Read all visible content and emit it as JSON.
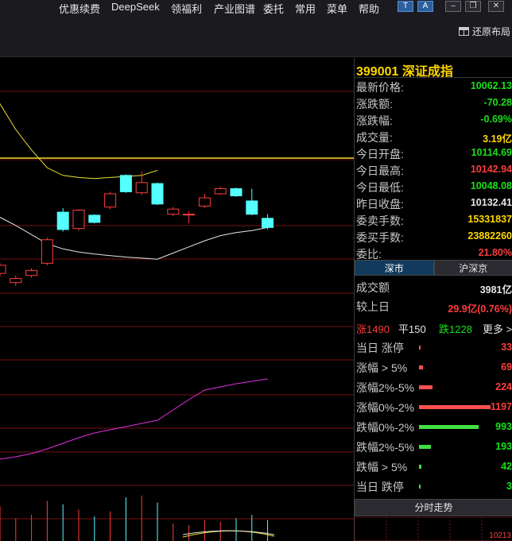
{
  "menu": {
    "items": [
      "优惠续费",
      "DeepSeek",
      "领福利",
      "产业图谱",
      "委托",
      "常用",
      "菜单",
      "帮助"
    ],
    "window_buttons": [
      "T",
      "A",
      "–",
      "❐",
      "✕"
    ]
  },
  "toolbar": {
    "restore_label": "还原布局"
  },
  "stock": {
    "code": "399001",
    "name": "深证成指"
  },
  "quote_rows": [
    {
      "label": "最新价格:",
      "value": "10062.13",
      "color": "green"
    },
    {
      "label": "涨跌额:",
      "value": "-70.28",
      "color": "green"
    },
    {
      "label": "涨跌幅:",
      "value": "-0.69%",
      "color": "green"
    },
    {
      "label": "成交量:",
      "value": "3.19亿",
      "color": "yellow"
    },
    {
      "label": "今日开盘:",
      "value": "10114.69",
      "color": "green"
    },
    {
      "label": "今日最高:",
      "value": "10142.94",
      "color": "red"
    },
    {
      "label": "今日最低:",
      "value": "10048.08",
      "color": "green"
    },
    {
      "label": "昨日收盘:",
      "value": "10132.41",
      "color": "white"
    },
    {
      "label": "委卖手数:",
      "value": "15331837",
      "color": "yellow"
    },
    {
      "label": "委买手数:",
      "value": "23882260",
      "color": "yellow"
    },
    {
      "label": "委比:",
      "value": "21.80%",
      "color": "red"
    }
  ],
  "market_tabs": [
    {
      "label": "深市",
      "active": true
    },
    {
      "label": "沪深京",
      "active": false
    }
  ],
  "turnover": {
    "label": "成交额",
    "value": "3981亿"
  },
  "vs_prev": {
    "label": "较上日",
    "value": "29.9亿(0.76%)"
  },
  "breadth": {
    "up": "涨1490",
    "flat": "平150",
    "down": "跌1228",
    "more": "更多 >"
  },
  "distribution": [
    {
      "label": "当日 涨停",
      "value": 33,
      "color": "red"
    },
    {
      "label": "涨幅 > 5%",
      "value": 69,
      "color": "red"
    },
    {
      "label": "涨幅2%-5%",
      "value": 224,
      "color": "red"
    },
    {
      "label": "涨幅0%-2%",
      "value": 1197,
      "color": "red"
    },
    {
      "label": "跌幅0%-2%",
      "value": 993,
      "color": "green"
    },
    {
      "label": "跌幅2%-5%",
      "value": 193,
      "color": "green"
    },
    {
      "label": "跌幅 > 5%",
      "value": 42,
      "color": "green"
    },
    {
      "label": "当日 跌停",
      "value": 3,
      "color": "green"
    }
  ],
  "intraday_button": "分时走势",
  "mini_price_label": "10213",
  "colors": {
    "up": "#ff3c3c",
    "down_candle": "#54ffff",
    "green": "#18e018",
    "yellow": "#ffd700",
    "ma_white": "#e6e6e6",
    "ma_yellow": "#e8e030",
    "ma_magenta": "#e030e0"
  },
  "chart_data": {
    "type": "candlestick",
    "candles": [
      {
        "open": 10008,
        "close": 10024,
        "high": 10028,
        "low": 10002
      },
      {
        "open": 9990,
        "close": 9998,
        "high": 10004,
        "low": 9984
      },
      {
        "open": 10004,
        "close": 10014,
        "high": 10018,
        "low": 10000
      },
      {
        "open": 10028,
        "close": 10074,
        "high": 10078,
        "low": 10024
      },
      {
        "open": 10128,
        "close": 10094,
        "high": 10136,
        "low": 10090
      },
      {
        "open": 10096,
        "close": 10132,
        "high": 10134,
        "low": 10092
      },
      {
        "open": 10122,
        "close": 10108,
        "high": 10124,
        "low": 10106
      },
      {
        "open": 10138,
        "close": 10164,
        "high": 10168,
        "low": 10134
      },
      {
        "open": 10200,
        "close": 10168,
        "high": 10202,
        "low": 10166
      },
      {
        "open": 10166,
        "close": 10186,
        "high": 10208,
        "low": 10162
      },
      {
        "open": 10184,
        "close": 10144,
        "high": 10186,
        "low": 10142
      },
      {
        "open": 10124,
        "close": 10134,
        "high": 10138,
        "low": 10120
      },
      {
        "open": 10124,
        "close": 10124,
        "high": 10130,
        "low": 10106
      },
      {
        "open": 10140,
        "close": 10156,
        "high": 10164,
        "low": 10136
      },
      {
        "open": 10164,
        "close": 10174,
        "high": 10178,
        "low": 10162
      },
      {
        "open": 10174,
        "close": 10160,
        "high": 10176,
        "low": 10158
      },
      {
        "open": 10150,
        "close": 10124,
        "high": 10174,
        "low": 10122
      },
      {
        "open": 10116,
        "close": 10098,
        "high": 10124,
        "low": 10094
      }
    ],
    "ma_white": [
      10132,
      10118,
      10102,
      10084,
      10066,
      10056,
      10050,
      10046,
      10043,
      10040,
      10038,
      10036,
      10048,
      10060,
      10072,
      10082,
      10088,
      10092,
      10098
    ],
    "ma_yellow": [
      10384,
      10340,
      10290,
      10250,
      10215,
      10200,
      10196,
      10194,
      10196,
      10198,
      10200,
      10210
    ],
    "horizontal_line": 10234
  }
}
